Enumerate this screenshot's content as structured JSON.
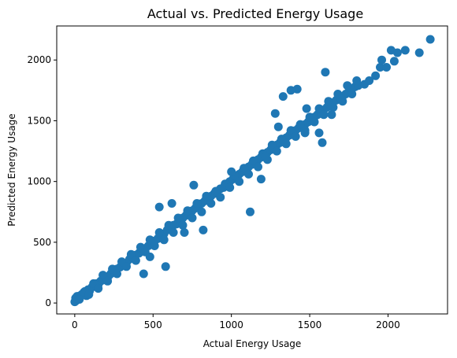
{
  "chart_data": {
    "type": "scatter",
    "title": "Actual vs. Predicted Energy Usage",
    "xlabel": "Actual Energy Usage",
    "ylabel": "Predicted Energy Usage",
    "xlim": [
      -115,
      2380
    ],
    "ylim": [
      -90,
      2280
    ],
    "xticks": [
      0,
      500,
      1000,
      1500,
      2000
    ],
    "yticks": [
      0,
      500,
      1000,
      1500,
      2000
    ],
    "grid": false,
    "marker_color": "#1f77b4",
    "series": [
      {
        "x": [
          0,
          5,
          10,
          15,
          20,
          28,
          35,
          45,
          55,
          65,
          75,
          85,
          95,
          110,
          125,
          140,
          150,
          165,
          180,
          200,
          215,
          230,
          250,
          270,
          290,
          310,
          330,
          350,
          370,
          390,
          410,
          430,
          450,
          470,
          490,
          510,
          530,
          550,
          570,
          590,
          610,
          630,
          650,
          670,
          690,
          710,
          730,
          750,
          770,
          790,
          810,
          830,
          850,
          870,
          890,
          910,
          930,
          950,
          970,
          990,
          1010,
          1030,
          1050,
          1070,
          1090,
          1110,
          1130,
          1150,
          1170,
          1190,
          1210,
          1230,
          1250,
          1270,
          1290,
          1310,
          1330,
          1350,
          1370,
          1390,
          1410,
          1430,
          1450,
          1470,
          1490,
          1510,
          1530,
          1550,
          1570,
          1590,
          1610,
          1630,
          1650,
          1670,
          1690,
          1710,
          1730,
          1750,
          1770,
          1790,
          1810,
          60,
          120,
          180,
          240,
          300,
          360,
          420,
          480,
          540,
          600,
          660,
          720,
          780,
          840,
          900,
          960,
          1020,
          1080,
          1140,
          1200,
          1260,
          1320,
          1380,
          1440,
          1500,
          1560,
          1620,
          1680,
          1740,
          1800,
          30,
          90,
          150,
          210,
          270,
          330,
          390,
          450,
          510,
          570,
          630,
          690,
          750,
          810,
          870,
          930,
          990,
          1050,
          1110,
          1170,
          1230,
          1290,
          1350,
          1410,
          1470,
          1530,
          1590,
          1650,
          1710,
          1770,
          1850,
          1880,
          1920,
          1950,
          1990,
          2020,
          2060,
          2110,
          2200,
          2270,
          2040,
          1960,
          1600,
          1420,
          1280,
          1190,
          1120,
          820,
          760,
          700,
          540,
          620,
          480,
          440,
          580,
          1000,
          1330,
          1480,
          1580,
          1700,
          1470,
          1560,
          1640,
          1380,
          1300,
          1220
        ],
        "y": [
          10,
          40,
          20,
          55,
          30,
          45,
          60,
          70,
          80,
          95,
          60,
          110,
          100,
          130,
          140,
          160,
          150,
          180,
          190,
          210,
          220,
          240,
          260,
          280,
          295,
          320,
          330,
          360,
          370,
          395,
          410,
          430,
          450,
          470,
          500,
          510,
          530,
          560,
          570,
          600,
          610,
          640,
          650,
          680,
          700,
          720,
          730,
          760,
          780,
          790,
          820,
          840,
          860,
          880,
          900,
          920,
          940,
          950,
          980,
          1000,
          1020,
          1040,
          1060,
          1080,
          1100,
          1120,
          1140,
          1160,
          1180,
          1200,
          1220,
          1240,
          1260,
          1280,
          1300,
          1320,
          1340,
          1360,
          1380,
          1400,
          1420,
          1440,
          1450,
          1470,
          1490,
          1510,
          1530,
          1550,
          1580,
          1590,
          1610,
          1630,
          1650,
          1670,
          1690,
          1700,
          1720,
          1740,
          1760,
          1780,
          1790,
          90,
          160,
          230,
          280,
          340,
          400,
          460,
          520,
          580,
          640,
          700,
          760,
          820,
          880,
          920,
          980,
          1050,
          1110,
          1170,
          1230,
          1300,
          1350,
          1420,
          1470,
          1530,
          1600,
          1660,
          1720,
          1790,
          1830,
          30,
          70,
          120,
          180,
          240,
          300,
          350,
          420,
          470,
          520,
          580,
          640,
          700,
          750,
          820,
          870,
          950,
          1000,
          1060,
          1120,
          1180,
          1250,
          1310,
          1370,
          1420,
          1490,
          1550,
          1610,
          1660,
          1720,
          1800,
          1830,
          1870,
          1940,
          1940,
          2080,
          2060,
          2080,
          2060,
          2170,
          1990,
          2000,
          1900,
          1760,
          1560,
          1020,
          750,
          600,
          970,
          580,
          790,
          820,
          380,
          240,
          300,
          1080,
          1700,
          1600,
          1320,
          1680,
          1400,
          1400,
          1550,
          1750,
          1450,
          1200
        ]
      }
    ]
  }
}
